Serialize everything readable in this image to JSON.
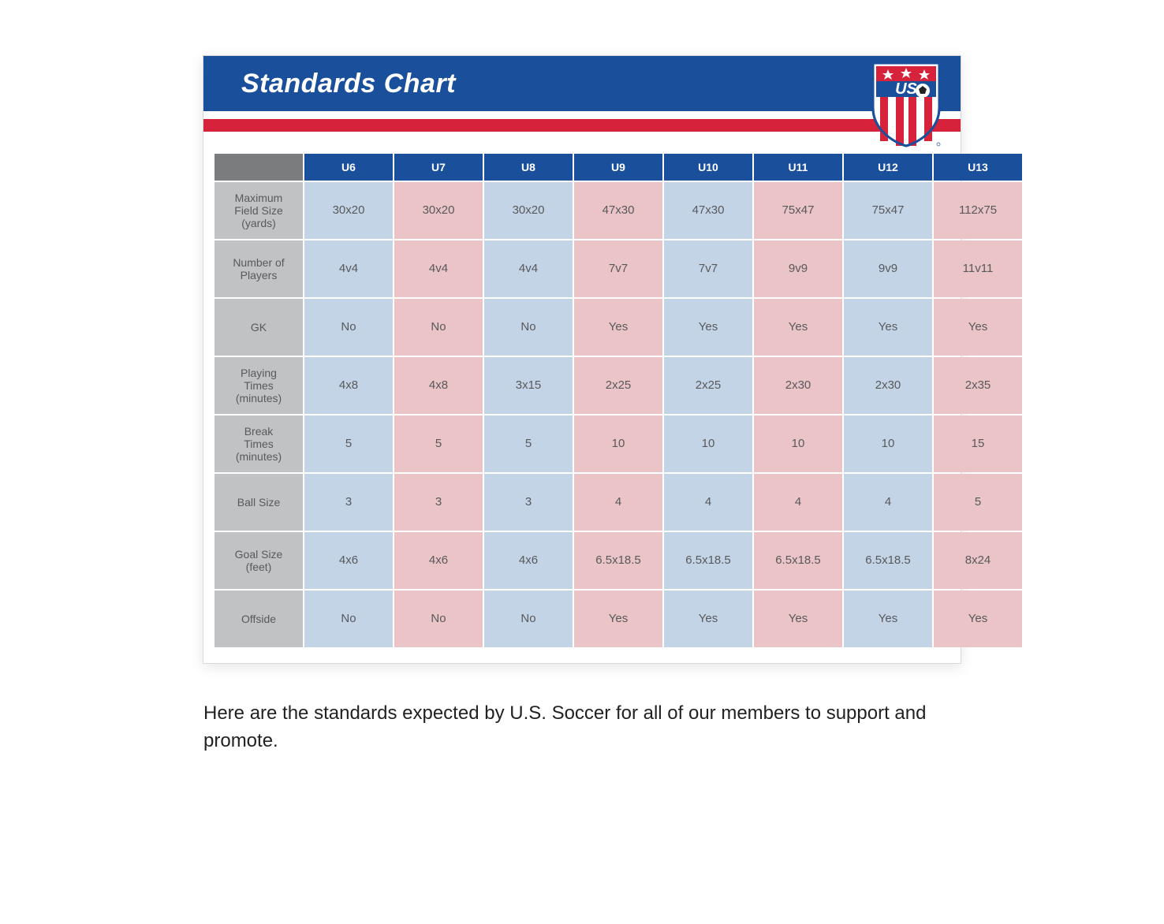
{
  "title": "Standards Chart",
  "caption": "Here are the standards expected by U.S. Soccer for all of our members to support and promote.",
  "colors": {
    "header_blue": "#1a4f9c",
    "header_red": "#d6223a",
    "col_blue": "#c3d4e6",
    "col_red": "#eac4c6",
    "row_label_bg": "#c1c2c4",
    "corner_bg": "#7b7c7e",
    "text": "#58595b"
  },
  "table": {
    "columns": [
      "U6",
      "U7",
      "U8",
      "U9",
      "U10",
      "U11",
      "U12",
      "U13"
    ],
    "column_shades": [
      "blue",
      "red",
      "blue",
      "red",
      "blue",
      "red",
      "blue",
      "red"
    ],
    "rows": [
      {
        "label": "Maximum\nField Size\n(yards)",
        "cells": [
          "30x20",
          "30x20",
          "30x20",
          "47x30",
          "47x30",
          "75x47",
          "75x47",
          "112x75"
        ]
      },
      {
        "label": "Number of\nPlayers",
        "cells": [
          "4v4",
          "4v4",
          "4v4",
          "7v7",
          "7v7",
          "9v9",
          "9v9",
          "11v11"
        ]
      },
      {
        "label": "GK",
        "cells": [
          "No",
          "No",
          "No",
          "Yes",
          "Yes",
          "Yes",
          "Yes",
          "Yes"
        ]
      },
      {
        "label": "Playing\nTimes\n(minutes)",
        "cells": [
          "4x8",
          "4x8",
          "3x15",
          "2x25",
          "2x25",
          "2x30",
          "2x30",
          "2x35"
        ]
      },
      {
        "label": "Break\nTimes\n(minutes)",
        "cells": [
          "5",
          "5",
          "5",
          "10",
          "10",
          "10",
          "10",
          "15"
        ]
      },
      {
        "label": "Ball Size",
        "cells": [
          "3",
          "3",
          "3",
          "4",
          "4",
          "4",
          "4",
          "5"
        ]
      },
      {
        "label": "Goal Size\n(feet)",
        "cells": [
          "4x6",
          "4x6",
          "4x6",
          "6.5x18.5",
          "6.5x18.5",
          "6.5x18.5",
          "6.5x18.5",
          "8x24"
        ]
      },
      {
        "label": "Offside",
        "cells": [
          "No",
          "No",
          "No",
          "Yes",
          "Yes",
          "Yes",
          "Yes",
          "Yes"
        ]
      }
    ]
  }
}
